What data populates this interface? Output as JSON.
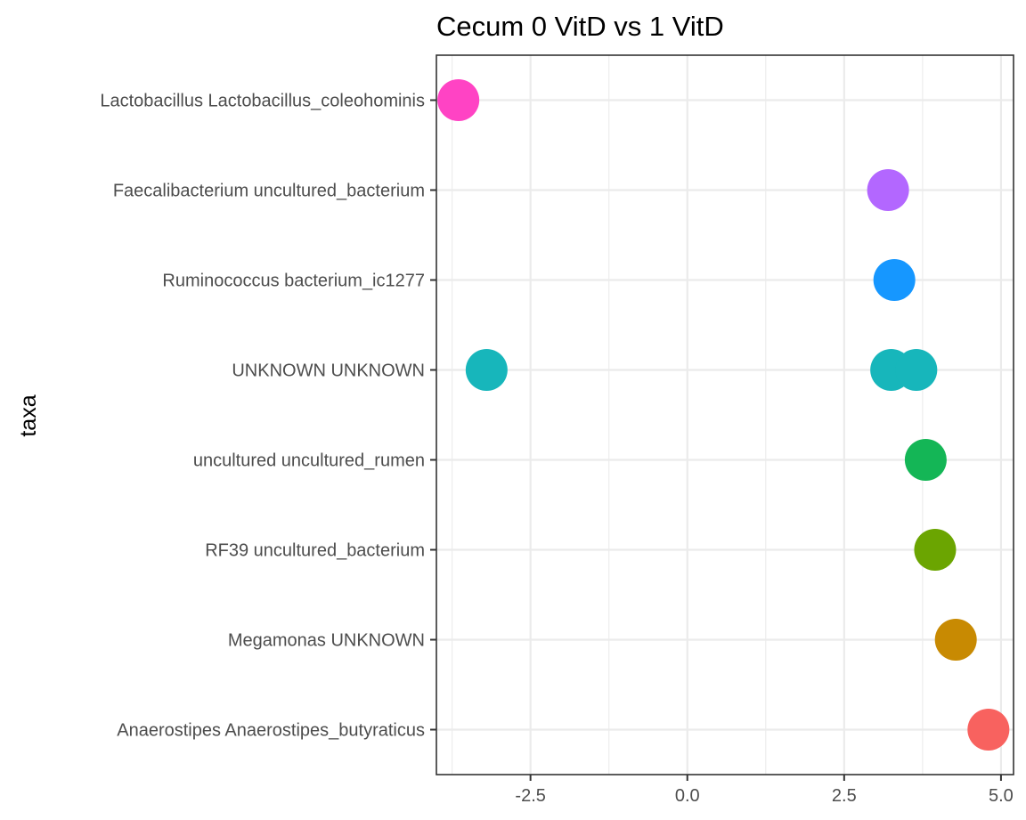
{
  "chart_data": {
    "type": "scatter",
    "title": "Cecum 0 VitD vs 1 VitD",
    "xlabel": "",
    "ylabel": "taxa",
    "xlim": [
      -4.0,
      5.2
    ],
    "x_ticks": [
      -2.5,
      0.0,
      2.5,
      5.0
    ],
    "x_tick_labels": [
      "-2.5",
      "0.0",
      "2.5",
      "5.0"
    ],
    "x_minor_ticks": [
      -3.75,
      -1.25,
      1.25,
      3.75
    ],
    "categories": [
      "Anaerostipes Anaerostipes_butyraticus",
      "Megamonas UNKNOWN",
      "RF39 uncultured_bacterium",
      "uncultured uncultured_rumen",
      "UNKNOWN UNKNOWN",
      "Ruminococcus bacterium_ic1277",
      "Faecalibacterium uncultured_bacterium",
      "Lactobacillus Lactobacillus_coleohominis"
    ],
    "grid": true,
    "legend": "none",
    "points": [
      {
        "category": "Lactobacillus Lactobacillus_coleohominis",
        "x": -3.65,
        "color": "#FF43C4"
      },
      {
        "category": "Faecalibacterium uncultured_bacterium",
        "x": 3.2,
        "color": "#B367FF"
      },
      {
        "category": "Ruminococcus bacterium_ic1277",
        "x": 3.3,
        "color": "#1697FF"
      },
      {
        "category": "UNKNOWN UNKNOWN",
        "x": -3.2,
        "color": "#17B6BB"
      },
      {
        "category": "UNKNOWN UNKNOWN",
        "x": 3.25,
        "color": "#17B6BB"
      },
      {
        "category": "UNKNOWN UNKNOWN",
        "x": 3.65,
        "color": "#17B6BB"
      },
      {
        "category": "uncultured uncultured_rumen",
        "x": 3.8,
        "color": "#14B656"
      },
      {
        "category": "RF39 uncultured_bacterium",
        "x": 3.95,
        "color": "#6BA501"
      },
      {
        "category": "Megamonas UNKNOWN",
        "x": 4.28,
        "color": "#C88A02"
      },
      {
        "category": "Anaerostipes Anaerostipes_butyraticus",
        "x": 4.8,
        "color": "#F8625F"
      }
    ]
  }
}
